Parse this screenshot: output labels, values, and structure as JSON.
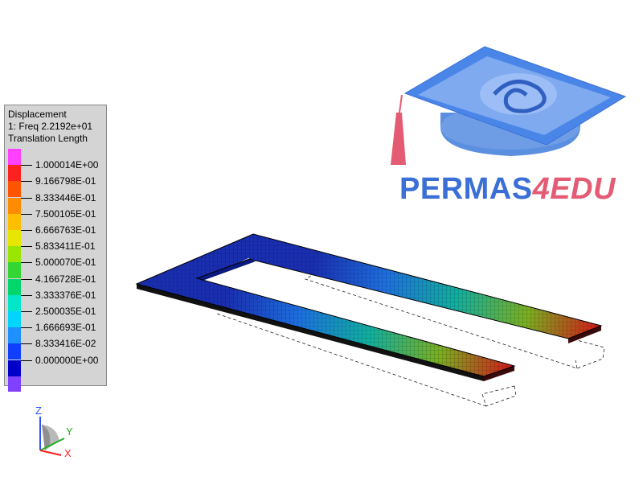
{
  "legend": {
    "title": "Displacement",
    "subtitle": "1: Freq 2.2192e+01",
    "quantity": "Translation Length",
    "levels": [
      {
        "label": "1.000014E+00",
        "color": "#ff2020"
      },
      {
        "label": "9.166798E-01",
        "color": "#ff5500"
      },
      {
        "label": "8.333446E-01",
        "color": "#ff8c00"
      },
      {
        "label": "7.500105E-01",
        "color": "#ffbf00"
      },
      {
        "label": "6.666763E-01",
        "color": "#e6e600"
      },
      {
        "label": "5.833411E-01",
        "color": "#9ae600"
      },
      {
        "label": "5.000070E-01",
        "color": "#33d633"
      },
      {
        "label": "4.166728E-01",
        "color": "#00d66b"
      },
      {
        "label": "3.333376E-01",
        "color": "#00e6c8"
      },
      {
        "label": "2.500035E-01",
        "color": "#00d4ff"
      },
      {
        "label": "1.666693E-01",
        "color": "#1e90ff"
      },
      {
        "label": "8.333416E-02",
        "color": "#1040ff"
      },
      {
        "label": "0.000000E+00",
        "color": "#0000c8"
      }
    ],
    "top_color": "#ff40ff",
    "bottom_color": "#8040ff"
  },
  "logo": {
    "part1": "PERMAS",
    "part2": "4EDU"
  },
  "axes": {
    "z": "Z",
    "y": "Y",
    "x": "X"
  },
  "colors": {
    "mesh_low": "#1a2fb0",
    "mesh_high": "#d41a1a",
    "logo_blue": "#3a6fd6",
    "logo_pink": "#e45c73"
  }
}
